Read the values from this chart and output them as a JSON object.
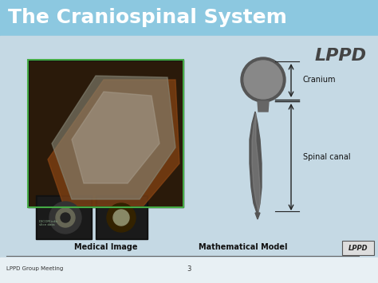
{
  "title": "The Craniospinal System",
  "lppd_top_right": "LPPD",
  "lppd_bottom_right": "LPPD",
  "footer_left": "LPPD Group Meeting",
  "footer_center": "3",
  "label_medical": "Medical Image",
  "label_math": "Mathematical Model",
  "label_cranium": "Cranium",
  "label_spinal": "Spinal canal",
  "bg_color_top": "#a8d4e6",
  "bg_color_main": "#c8dde8",
  "bg_color_bottom": "#e8f0f5",
  "title_color": "#ffffff",
  "title_bg_color": "#7ab8d4",
  "arrow_color": "#222222",
  "text_color_dark": "#111111",
  "lppd_color_top": "#555555",
  "footer_line_color": "#555555",
  "lppd_box_color": "#cccccc",
  "figsize": [
    4.74,
    3.55
  ],
  "dpi": 100
}
